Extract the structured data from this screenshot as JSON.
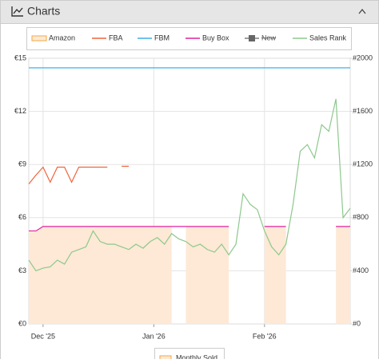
{
  "header": {
    "title": "Charts"
  },
  "chart_data": {
    "type": "line",
    "legend_extra": "Monthly Sold",
    "x": [
      -4,
      -2,
      0,
      2,
      4,
      6,
      8,
      10,
      12,
      14,
      16,
      18,
      20,
      22,
      24,
      26,
      28,
      30,
      32,
      34,
      36,
      38,
      40,
      42,
      44,
      46,
      48,
      50,
      52,
      54,
      56,
      58,
      60,
      62,
      64,
      66,
      68,
      70,
      72,
      74,
      76,
      78,
      80,
      82,
      84,
      86
    ],
    "xlim": [
      -4,
      86
    ],
    "xticks": [
      {
        "value": 0,
        "label": "Dec '25"
      },
      {
        "value": 31,
        "label": "Jan '26"
      },
      {
        "value": 62,
        "label": "Feb '26"
      }
    ],
    "ylim": [
      0,
      15
    ],
    "yticks": [
      {
        "value": 0,
        "label": "€0"
      },
      {
        "value": 3,
        "label": "€3"
      },
      {
        "value": 6,
        "label": "€6"
      },
      {
        "value": 9,
        "label": "€9"
      },
      {
        "value": 12,
        "label": "€12"
      },
      {
        "value": 15,
        "label": "€15"
      }
    ],
    "y2lim": [
      0,
      2000
    ],
    "y2ticks": [
      {
        "value": 0,
        "label": "#0"
      },
      {
        "value": 400,
        "label": "#400"
      },
      {
        "value": 800,
        "label": "#800"
      },
      {
        "value": 1200,
        "label": "#1200"
      },
      {
        "value": 1600,
        "label": "#1600"
      },
      {
        "value": 2000,
        "label": "#2000"
      }
    ],
    "grid": true,
    "series": [
      {
        "name": "Amazon",
        "color": "#f5a742",
        "fill": "#fde9d6",
        "values": [
          5.25,
          5.25,
          5.5,
          5.5,
          5.5,
          5.5,
          5.5,
          5.5,
          5.5,
          5.5,
          5.5,
          5.5,
          5.5,
          5.5,
          5.5,
          5.5,
          5.5,
          5.5,
          5.5,
          5.5,
          5.5,
          null,
          5.5,
          5.5,
          5.5,
          5.5,
          5.5,
          5.5,
          5.5,
          null,
          null,
          null,
          null,
          5.5,
          5.5,
          5.5,
          5.5,
          null,
          null,
          null,
          null,
          null,
          null,
          5.5,
          5.5,
          5.5
        ]
      },
      {
        "name": "FBA",
        "color": "#f0643c",
        "values": [
          7.9,
          8.4,
          8.85,
          8.0,
          8.85,
          8.85,
          8.0,
          8.85,
          8.85,
          8.85,
          8.85,
          8.85,
          null,
          8.9,
          8.9,
          null,
          null,
          null,
          null,
          null,
          null,
          null,
          null,
          null,
          null,
          null,
          null,
          null,
          null,
          null,
          null,
          null,
          null,
          null,
          null,
          null,
          null,
          null,
          null,
          null,
          null,
          null,
          null,
          null,
          null,
          null
        ]
      },
      {
        "name": "FBM",
        "color": "#3fb1e6",
        "values": [
          14.46,
          14.46,
          14.46,
          14.46,
          14.46,
          14.46,
          14.46,
          14.46,
          14.46,
          14.46,
          14.46,
          14.46,
          14.46,
          14.46,
          14.46,
          14.46,
          14.46,
          14.46,
          14.46,
          14.46,
          14.46,
          14.46,
          14.46,
          14.46,
          14.46,
          14.46,
          14.46,
          14.46,
          14.46,
          14.46,
          14.46,
          14.46,
          14.46,
          14.46,
          14.46,
          14.46,
          14.46,
          14.46,
          14.46,
          14.46,
          14.46,
          14.46,
          14.46,
          14.46,
          14.46,
          14.46
        ]
      },
      {
        "name": "Buy Box",
        "color": "#e0219e",
        "values": [
          5.25,
          5.25,
          5.5,
          5.5,
          5.5,
          5.5,
          5.5,
          5.5,
          5.5,
          5.5,
          5.5,
          5.5,
          5.5,
          5.5,
          5.5,
          5.5,
          5.5,
          5.5,
          5.5,
          5.5,
          5.5,
          5.5,
          5.5,
          5.5,
          5.5,
          5.5,
          5.5,
          5.5,
          5.5,
          null,
          null,
          null,
          null,
          5.5,
          5.5,
          5.5,
          5.5,
          null,
          null,
          null,
          null,
          null,
          null,
          5.5,
          5.5,
          5.5
        ]
      },
      {
        "name": "New",
        "color": "#666666",
        "hidden": true,
        "values": [
          null,
          null,
          null,
          null,
          null,
          null,
          null,
          null,
          null,
          null,
          null,
          null,
          null,
          null,
          null,
          null,
          null,
          null,
          null,
          null,
          null,
          null,
          null,
          null,
          null,
          null,
          null,
          null,
          null,
          null,
          null,
          null,
          null,
          null,
          null,
          null,
          null,
          null,
          null,
          null,
          null,
          null,
          null,
          null,
          null,
          null
        ]
      },
      {
        "name": "Sales Rank",
        "color": "#8dc88d",
        "axis": "y2",
        "values": [
          480,
          400,
          420,
          430,
          480,
          450,
          540,
          560,
          580,
          700,
          620,
          600,
          600,
          580,
          560,
          600,
          570,
          620,
          650,
          600,
          680,
          640,
          620,
          580,
          600,
          560,
          540,
          600,
          520,
          600,
          980,
          900,
          860,
          700,
          580,
          520,
          600,
          900,
          1300,
          1350,
          1250,
          1500,
          1450,
          1694,
          800,
          870
        ]
      }
    ]
  }
}
